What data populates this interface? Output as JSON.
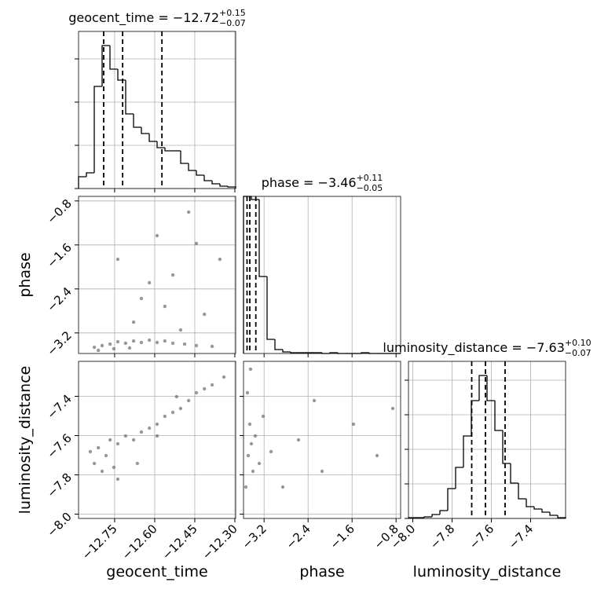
{
  "chart_data": [
    {
      "type": "histogram",
      "title": "geocent_time = −12.72",
      "title_upper": "+0.15",
      "title_lower": "−0.07",
      "bins": [
        -12.885,
        -12.8556,
        -12.8262,
        -12.7968,
        -12.7674,
        -12.738,
        -12.7086,
        -12.6792,
        -12.6498,
        -12.6204,
        -12.591,
        -12.5616,
        -12.5322,
        -12.5028,
        -12.4734,
        -12.444,
        -12.4146,
        -12.3852,
        -12.3558,
        -12.3264,
        -12.297
      ],
      "values": [
        15,
        20,
        130,
        182,
        152,
        138,
        95,
        78,
        70,
        60,
        52,
        48,
        48,
        32,
        23,
        17,
        10,
        6,
        3,
        2
      ],
      "quantiles": [
        -12.791,
        -12.72,
        -12.573
      ],
      "xlim": [
        -12.885,
        -12.297
      ],
      "xticks": [
        -12.75,
        -12.6,
        -12.45,
        -12.3
      ],
      "ylim": [
        0,
        200
      ],
      "yticks": [
        0,
        55,
        110,
        165
      ],
      "grid": true,
      "color": "#000000"
    },
    {
      "type": "scatter",
      "x": [
        -12.797,
        -12.767,
        -12.738,
        -12.709,
        -12.679,
        -12.65,
        -12.62,
        -12.591,
        -12.562,
        -12.532,
        -12.488,
        -12.444,
        -12.385,
        -12.826,
        -12.811,
        -12.753,
        -12.694,
        -12.738,
        -12.65,
        -12.591,
        -12.532,
        -12.473,
        -12.414,
        -12.679,
        -12.562,
        -12.356,
        -12.503,
        -12.62,
        -12.444
      ],
      "y": [
        -3.431,
        -3.403,
        -3.36,
        -3.388,
        -3.346,
        -3.374,
        -3.331,
        -3.374,
        -3.346,
        -3.388,
        -3.403,
        -3.431,
        -3.445,
        -3.46,
        -3.517,
        -3.488,
        -3.474,
        -1.86,
        -2.574,
        -1.431,
        -2.146,
        -1.003,
        -2.86,
        -3.003,
        -2.717,
        -1.86,
        -3.146,
        -2.288,
        -1.574
      ],
      "ylabel": "phase",
      "xlim": [
        -12.885,
        -12.297
      ],
      "xticks": [
        -12.75,
        -12.6,
        -12.45,
        -12.3
      ],
      "ylim": [
        -3.574,
        -0.717
      ],
      "yticks": [
        {
          "value": -3.2,
          "label": "−3.2"
        },
        {
          "value": -2.4,
          "label": "−2.4"
        },
        {
          "value": -1.6,
          "label": "−1.6"
        },
        {
          "value": -0.8,
          "label": "−0.8"
        }
      ],
      "grid": true,
      "color": "#555555"
    },
    {
      "type": "histogram",
      "title": "phase = −3.46",
      "title_upper": "+0.11",
      "title_lower": "−0.05",
      "bins": [
        -3.574,
        -3.4311,
        -3.2883,
        -3.1454,
        -3.0026,
        -2.8597,
        -2.7169,
        -2.574,
        -2.4311,
        -2.2883,
        -2.1454,
        -2.0026,
        -1.8597,
        -1.7169,
        -1.574,
        -1.4311,
        -1.2883,
        -1.1454,
        -1.0026,
        -0.8597,
        -0.7169
      ],
      "values": [
        200,
        196,
        98,
        18,
        5,
        2,
        1,
        1,
        1,
        1,
        0,
        1,
        0,
        0,
        0,
        1,
        0,
        0,
        0,
        0
      ],
      "quantiles": [
        -3.51,
        -3.46,
        -3.35
      ],
      "xlim": [
        -3.574,
        -0.717
      ],
      "xticks": [
        -3.2,
        -2.4,
        -1.6,
        -0.8
      ],
      "ylim": [
        0,
        200
      ],
      "grid": true,
      "color": "#000000"
    },
    {
      "type": "scatter",
      "x": [
        -12.841,
        -12.811,
        -12.782,
        -12.767,
        -12.738,
        -12.709,
        -12.679,
        -12.65,
        -12.62,
        -12.591,
        -12.562,
        -12.532,
        -12.503,
        -12.473,
        -12.444,
        -12.414,
        -12.385,
        -12.341,
        -12.797,
        -12.738,
        -12.753,
        -12.665,
        -12.826,
        -12.518,
        -12.591
      ],
      "y": [
        -7.682,
        -7.662,
        -7.702,
        -7.622,
        -7.642,
        -7.602,
        -7.622,
        -7.582,
        -7.562,
        -7.542,
        -7.502,
        -7.482,
        -7.462,
        -7.422,
        -7.382,
        -7.362,
        -7.342,
        -7.302,
        -7.782,
        -7.822,
        -7.762,
        -7.742,
        -7.742,
        -7.402,
        -7.602
      ],
      "xlabel": "geocent_time",
      "ylabel": "luminosity_distance",
      "xlim": [
        -12.885,
        -12.297
      ],
      "xticks": [
        {
          "value": -12.75,
          "label": "−12.75"
        },
        {
          "value": -12.6,
          "label": "−12.60"
        },
        {
          "value": -12.45,
          "label": "−12.45"
        },
        {
          "value": -12.3,
          "label": "−12.30"
        }
      ],
      "ylim": [
        -8.022,
        -7.222
      ],
      "yticks": [
        {
          "value": -8.0,
          "label": "−8.0"
        },
        {
          "value": -7.8,
          "label": "−7.8"
        },
        {
          "value": -7.6,
          "label": "−7.6"
        },
        {
          "value": -7.4,
          "label": "−7.4"
        }
      ],
      "grid": true,
      "color": "#555555"
    },
    {
      "type": "scatter",
      "x": [
        -3.503,
        -3.46,
        -3.431,
        -3.488,
        -3.403,
        -3.36,
        -3.288,
        -3.531,
        -3.217,
        -3.074,
        -2.574,
        -2.146,
        -1.574,
        -1.146,
        -0.86,
        -2.288,
        -2.86,
        -3.446
      ],
      "y": [
        -7.382,
        -7.542,
        -7.642,
        -7.702,
        -7.782,
        -7.602,
        -7.742,
        -7.862,
        -7.502,
        -7.682,
        -7.622,
        -7.782,
        -7.542,
        -7.702,
        -7.462,
        -7.422,
        -7.862,
        -7.262
      ],
      "xlabel": "phase",
      "xlim": [
        -3.574,
        -0.717
      ],
      "xticks": [
        {
          "value": -3.2,
          "label": "−3.2"
        },
        {
          "value": -2.4,
          "label": "−2.4"
        },
        {
          "value": -1.6,
          "label": "−1.6"
        },
        {
          "value": -0.8,
          "label": "−0.8"
        }
      ],
      "ylim": [
        -8.022,
        -7.222
      ],
      "yticks": [
        -8.0,
        -7.8,
        -7.6,
        -7.4
      ],
      "grid": true,
      "color": "#555555"
    },
    {
      "type": "histogram",
      "title": "luminosity_distance = −7.63",
      "title_upper": "+0.10",
      "title_lower": "−0.07",
      "bins": [
        -8.022,
        -7.982,
        -7.942,
        -7.902,
        -7.862,
        -7.822,
        -7.782,
        -7.742,
        -7.702,
        -7.662,
        -7.622,
        -7.582,
        -7.542,
        -7.502,
        -7.462,
        -7.422,
        -7.382,
        -7.342,
        -7.302,
        -7.262,
        -7.222
      ],
      "values": [
        1,
        1,
        2,
        5,
        10,
        38,
        65,
        105,
        150,
        182,
        150,
        112,
        70,
        45,
        25,
        15,
        12,
        8,
        4,
        1
      ],
      "quantiles": [
        -7.7,
        -7.63,
        -7.53
      ],
      "xlabel": "luminosity_distance",
      "xlim": [
        -8.022,
        -7.222
      ],
      "xticks": [
        {
          "value": -8.0,
          "label": "−8.0"
        },
        {
          "value": -7.8,
          "label": "−7.8"
        },
        {
          "value": -7.6,
          "label": "−7.6"
        },
        {
          "value": -7.4,
          "label": "−7.4"
        }
      ],
      "ylim": [
        0,
        200
      ],
      "yticks": [
        0,
        44,
        88,
        132,
        176
      ],
      "grid": true,
      "color": "#000000"
    }
  ]
}
